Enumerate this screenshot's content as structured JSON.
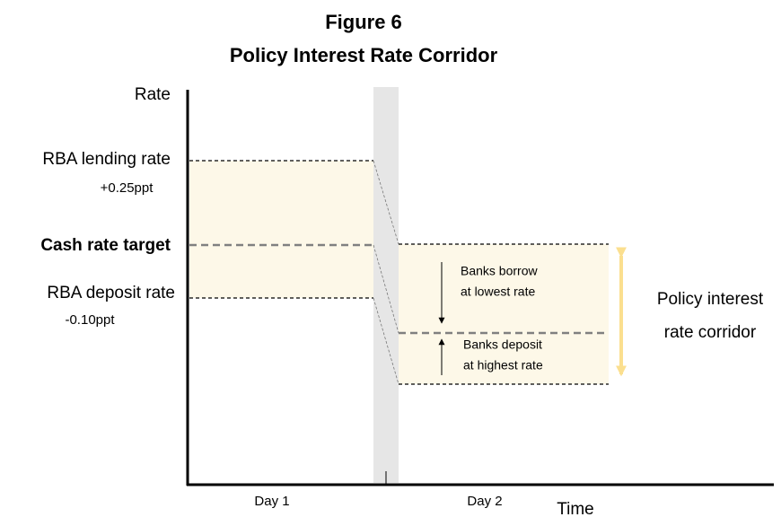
{
  "figure": {
    "number": "Figure 6",
    "title": "Policy Interest Rate Corridor"
  },
  "axes": {
    "y_label": "Rate",
    "x_label": "Time",
    "day_1": "Day 1",
    "day_2": "Day 2"
  },
  "levels": {
    "lending": {
      "label": "RBA lending rate",
      "spread": "+0.25ppt"
    },
    "cash": {
      "label": "Cash rate target"
    },
    "deposit": {
      "label": "RBA deposit rate",
      "spread": "-0.10ppt"
    }
  },
  "annotations": {
    "borrow": [
      "Banks borrow",
      "at lowest rate"
    ],
    "deposit": [
      "Banks deposit",
      "at highest rate"
    ],
    "corridor": [
      "Policy interest",
      "rate corridor"
    ]
  }
}
